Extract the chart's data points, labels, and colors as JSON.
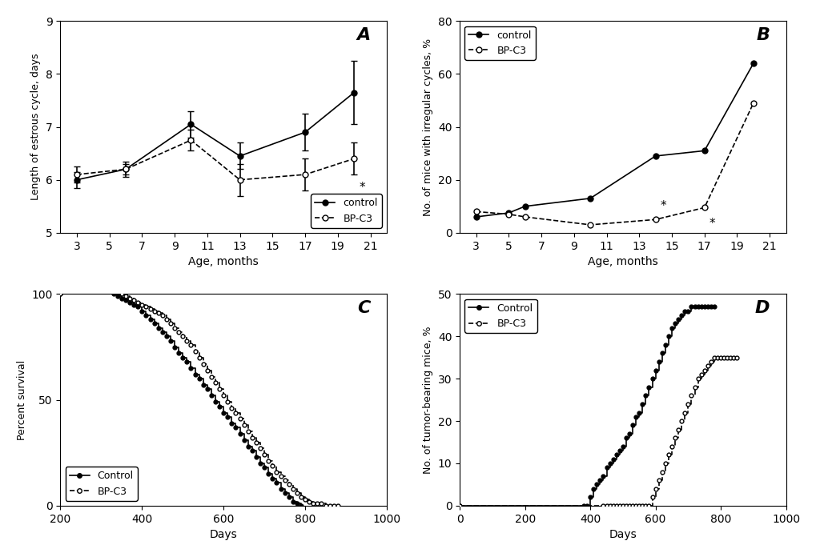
{
  "panel_A": {
    "label": "A",
    "xlabel": "Age, months",
    "ylabel": "Length of estrous cycle, days",
    "ylim": [
      5,
      9
    ],
    "yticks": [
      5,
      6,
      7,
      8,
      9
    ],
    "xticks": [
      3,
      5,
      7,
      9,
      11,
      13,
      15,
      17,
      19,
      21
    ],
    "control_x": [
      3,
      6,
      10,
      13,
      17,
      20
    ],
    "control_y": [
      6.0,
      6.2,
      7.05,
      6.45,
      6.9,
      7.65
    ],
    "control_yerr": [
      0.15,
      0.15,
      0.25,
      0.25,
      0.35,
      0.6
    ],
    "bpc3_x": [
      3,
      6,
      10,
      13,
      17,
      20
    ],
    "bpc3_y": [
      6.1,
      6.2,
      6.75,
      6.0,
      6.1,
      6.4
    ],
    "bpc3_yerr": [
      0.15,
      0.1,
      0.2,
      0.3,
      0.3,
      0.3
    ],
    "star_x": 20,
    "star_y": 5.85,
    "legend_control": "control",
    "legend_bpc3": "BP-C3"
  },
  "panel_B": {
    "label": "B",
    "xlabel": "Age, months",
    "ylabel": "No. of mice with irregular cycles, %",
    "ylim": [
      0,
      80
    ],
    "yticks": [
      0,
      20,
      40,
      60,
      80
    ],
    "xticks": [
      3,
      5,
      7,
      9,
      11,
      13,
      15,
      17,
      19,
      21
    ],
    "control_x": [
      3,
      5,
      6,
      10,
      14,
      17,
      20
    ],
    "control_y": [
      6.0,
      7.5,
      10.0,
      13.0,
      29.0,
      31.0,
      64.0
    ],
    "bpc3_x": [
      3,
      5,
      6,
      10,
      14,
      17,
      20
    ],
    "bpc3_y": [
      8.0,
      7.0,
      6.0,
      3.0,
      5.0,
      9.5,
      49.0
    ],
    "star1_x": 14,
    "star1_y": 10.0,
    "star2_x": 17,
    "star2_y": 3.5,
    "legend_control": "control",
    "legend_bpc3": "BP-C3"
  },
  "panel_C": {
    "label": "C",
    "xlabel": "Days",
    "ylabel": "Percent survival",
    "xlim": [
      200,
      1000
    ],
    "ylim": [
      0,
      100
    ],
    "yticks": [
      0,
      50,
      100
    ],
    "xticks": [
      200,
      400,
      600,
      800,
      1000
    ],
    "control_x": [
      200,
      330,
      340,
      350,
      360,
      370,
      380,
      390,
      400,
      410,
      420,
      430,
      440,
      450,
      460,
      470,
      480,
      490,
      500,
      510,
      520,
      530,
      540,
      550,
      560,
      570,
      580,
      590,
      600,
      610,
      620,
      630,
      640,
      650,
      660,
      670,
      680,
      690,
      700,
      710,
      720,
      730,
      740,
      750,
      760,
      770,
      780,
      790
    ],
    "control_y": [
      100,
      100,
      99,
      98,
      97,
      96,
      95,
      94,
      92,
      90,
      88,
      86,
      84,
      82,
      80,
      78,
      75,
      72,
      70,
      68,
      65,
      62,
      60,
      57,
      55,
      52,
      49,
      47,
      44,
      42,
      39,
      37,
      34,
      31,
      28,
      26,
      23,
      20,
      18,
      15,
      13,
      11,
      8,
      6,
      4,
      2,
      1,
      0
    ],
    "bpc3_x": [
      200,
      350,
      360,
      370,
      380,
      390,
      400,
      410,
      420,
      430,
      440,
      450,
      460,
      470,
      480,
      490,
      500,
      510,
      520,
      530,
      540,
      550,
      560,
      570,
      580,
      590,
      600,
      610,
      620,
      630,
      640,
      650,
      660,
      670,
      680,
      690,
      700,
      710,
      720,
      730,
      740,
      750,
      760,
      770,
      780,
      790,
      800,
      810,
      820,
      830,
      840,
      850,
      860,
      870,
      880
    ],
    "bpc3_y": [
      100,
      100,
      99,
      98,
      97,
      96,
      95,
      94,
      93,
      92,
      91,
      90,
      88,
      86,
      84,
      82,
      80,
      78,
      76,
      73,
      70,
      67,
      64,
      61,
      58,
      55,
      52,
      49,
      46,
      44,
      41,
      38,
      35,
      32,
      30,
      27,
      24,
      21,
      19,
      16,
      14,
      12,
      10,
      8,
      6,
      4,
      3,
      2,
      1,
      1,
      1,
      0,
      0,
      0,
      0
    ],
    "legend_control": "Control",
    "legend_bpc3": "BP-C3"
  },
  "panel_D": {
    "label": "D",
    "xlabel": "Days",
    "ylabel": "No. of tumor-bearing mice, %",
    "xlim": [
      0,
      1000
    ],
    "ylim": [
      0,
      50
    ],
    "yticks": [
      0,
      10,
      20,
      30,
      40,
      50
    ],
    "xticks": [
      0,
      200,
      400,
      600,
      800,
      1000
    ],
    "control_x": [
      0,
      380,
      390,
      400,
      410,
      420,
      430,
      440,
      450,
      460,
      470,
      480,
      490,
      500,
      510,
      520,
      530,
      540,
      550,
      560,
      570,
      580,
      590,
      600,
      610,
      620,
      630,
      640,
      650,
      660,
      670,
      680,
      690,
      700,
      710,
      720,
      730,
      740,
      750,
      760,
      770,
      780
    ],
    "control_y": [
      0,
      0,
      0,
      2,
      4,
      5,
      6,
      7,
      9,
      10,
      11,
      12,
      13,
      14,
      16,
      17,
      19,
      21,
      22,
      24,
      26,
      28,
      30,
      32,
      34,
      36,
      38,
      40,
      42,
      43,
      44,
      45,
      46,
      46,
      47,
      47,
      47,
      47,
      47,
      47,
      47,
      47
    ],
    "bpc3_x": [
      0,
      440,
      450,
      460,
      470,
      480,
      490,
      500,
      510,
      520,
      530,
      540,
      550,
      560,
      570,
      580,
      590,
      600,
      610,
      620,
      630,
      640,
      650,
      660,
      670,
      680,
      690,
      700,
      710,
      720,
      730,
      740,
      750,
      760,
      770,
      780,
      790,
      800,
      810,
      820,
      830,
      840,
      850
    ],
    "bpc3_y": [
      0,
      0,
      0,
      0,
      0,
      0,
      0,
      0,
      0,
      0,
      0,
      0,
      0,
      0,
      0,
      0,
      2,
      4,
      6,
      8,
      10,
      12,
      14,
      16,
      18,
      20,
      22,
      24,
      26,
      28,
      30,
      31,
      32,
      33,
      34,
      35,
      35,
      35,
      35,
      35,
      35,
      35,
      35
    ],
    "legend_control": "Control",
    "legend_bpc3": "BP-C3"
  },
  "bg_color": "#ffffff",
  "line_color": "#000000"
}
